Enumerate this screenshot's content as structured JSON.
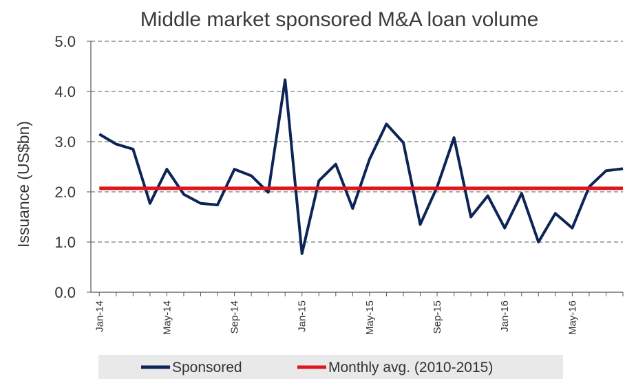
{
  "chart_data": {
    "type": "line",
    "title": "Middle market sponsored M&A loan volume",
    "ylabel": "Issuance (US$bn)",
    "xlabel": "",
    "ylim": [
      0,
      5
    ],
    "yticks": [
      "0.0",
      "1.0",
      "2.0",
      "3.0",
      "4.0",
      "5.0"
    ],
    "x_tick_labels": [
      "Jan-14",
      "May-14",
      "Sep-14",
      "Jan-15",
      "May-15",
      "Sep-15",
      "Jan-16",
      "May-16"
    ],
    "x": [
      "Jan-14",
      "Feb-14",
      "Mar-14",
      "Apr-14",
      "May-14",
      "Jun-14",
      "Jul-14",
      "Aug-14",
      "Sep-14",
      "Oct-14",
      "Nov-14",
      "Dec-14",
      "Jan-15",
      "Feb-15",
      "Mar-15",
      "Apr-15",
      "May-15",
      "Jun-15",
      "Jul-15",
      "Aug-15",
      "Sep-15",
      "Oct-15",
      "Nov-15",
      "Dec-15",
      "Jan-16",
      "Feb-16",
      "Mar-16",
      "Apr-16",
      "May-16",
      "Jun-16",
      "Jul-16",
      "Aug-16"
    ],
    "series": [
      {
        "name": "Sponsored",
        "color": "#0d2457",
        "values": [
          3.15,
          2.95,
          2.85,
          1.77,
          2.45,
          1.95,
          1.77,
          1.74,
          2.45,
          2.32,
          1.99,
          4.23,
          0.77,
          2.22,
          2.55,
          1.67,
          2.65,
          3.35,
          2.98,
          1.35,
          2.1,
          3.08,
          1.5,
          1.92,
          1.28,
          1.97,
          1.0,
          1.57,
          1.28,
          2.1,
          2.42,
          2.46
        ]
      },
      {
        "name": "Monthly avg. (2010-2015)",
        "color": "#e0151c",
        "values": [
          2.07,
          2.07,
          2.07,
          2.07,
          2.07,
          2.07,
          2.07,
          2.07,
          2.07,
          2.07,
          2.07,
          2.07,
          2.07,
          2.07,
          2.07,
          2.07,
          2.07,
          2.07,
          2.07,
          2.07,
          2.07,
          2.07,
          2.07,
          2.07,
          2.07,
          2.07,
          2.07,
          2.07,
          2.07,
          2.07,
          2.07,
          2.07
        ]
      }
    ],
    "grid": "horizontal dashed",
    "legend_position": "bottom"
  }
}
